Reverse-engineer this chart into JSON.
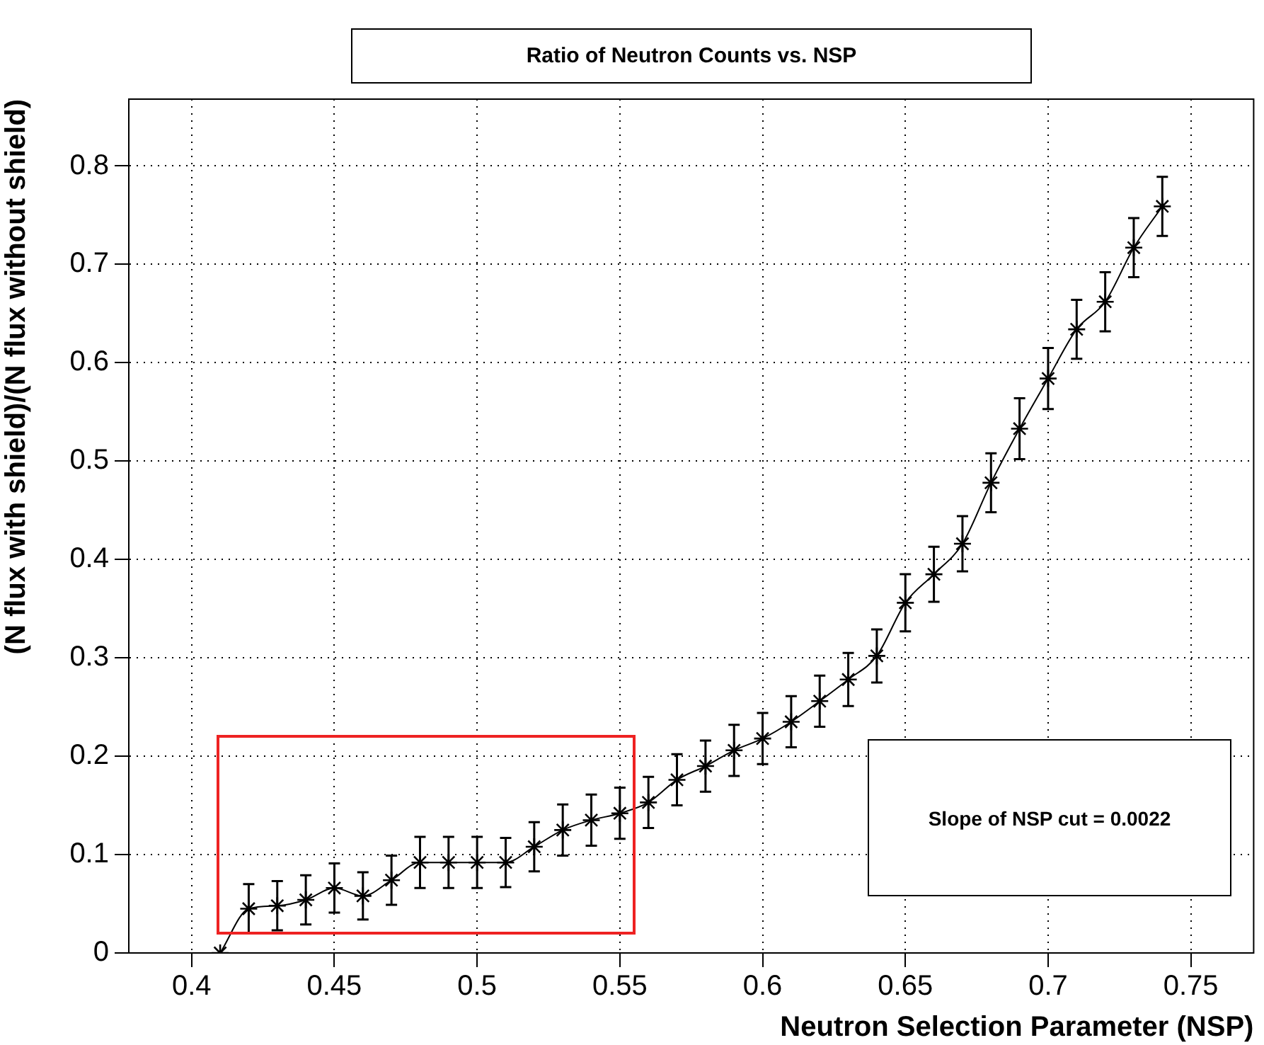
{
  "chart_data": {
    "type": "line",
    "title": "Ratio of Neutron Counts vs. NSP",
    "xlabel": "Neutron Selection Parameter (NSP)",
    "ylabel": "(N flux with shield)/(N flux without shield)",
    "x": [
      0.41,
      0.42,
      0.43,
      0.44,
      0.45,
      0.46,
      0.47,
      0.48,
      0.49,
      0.5,
      0.51,
      0.52,
      0.53,
      0.54,
      0.55,
      0.56,
      0.57,
      0.58,
      0.59,
      0.6,
      0.61,
      0.62,
      0.63,
      0.64,
      0.65,
      0.66,
      0.67,
      0.68,
      0.69,
      0.7,
      0.71,
      0.72,
      0.73,
      0.74
    ],
    "series": [
      {
        "color": "#000000",
        "values": [
          0,
          0.045,
          0.048,
          0.054,
          0.066,
          0.058,
          0.074,
          0.092,
          0.092,
          0.092,
          0.092,
          0.108,
          0.125,
          0.135,
          0.142,
          0.153,
          0.176,
          0.19,
          0.206,
          0.218,
          0.235,
          0.256,
          0.278,
          0.302,
          0.356,
          0.385,
          0.416,
          0.478,
          0.533,
          0.584,
          0.634,
          0.662,
          0.717,
          0.759
        ],
        "errors": [
          null,
          0.025,
          0.025,
          0.025,
          0.025,
          0.024,
          0.025,
          0.026,
          0.026,
          0.026,
          0.025,
          0.025,
          0.026,
          0.026,
          0.026,
          0.026,
          0.026,
          0.026,
          0.026,
          0.026,
          0.026,
          0.026,
          0.027,
          0.027,
          0.029,
          0.028,
          0.028,
          0.03,
          0.031,
          0.031,
          0.03,
          0.03,
          0.03,
          0.03
        ]
      }
    ],
    "xlim": [
      0.378,
      0.772
    ],
    "xticks": [
      0.4,
      0.45,
      0.5,
      0.55,
      0.6,
      0.65,
      0.7,
      0.75
    ],
    "ylim": [
      0,
      0.868
    ],
    "yticks": [
      0,
      0.1,
      0.2,
      0.3,
      0.4,
      0.5,
      0.6,
      0.7,
      0.8
    ],
    "grid": true,
    "marker": "cross",
    "line_style": "solid",
    "legend": false,
    "annotations": [
      "Slope of NSP cut = 0.0022"
    ]
  }
}
